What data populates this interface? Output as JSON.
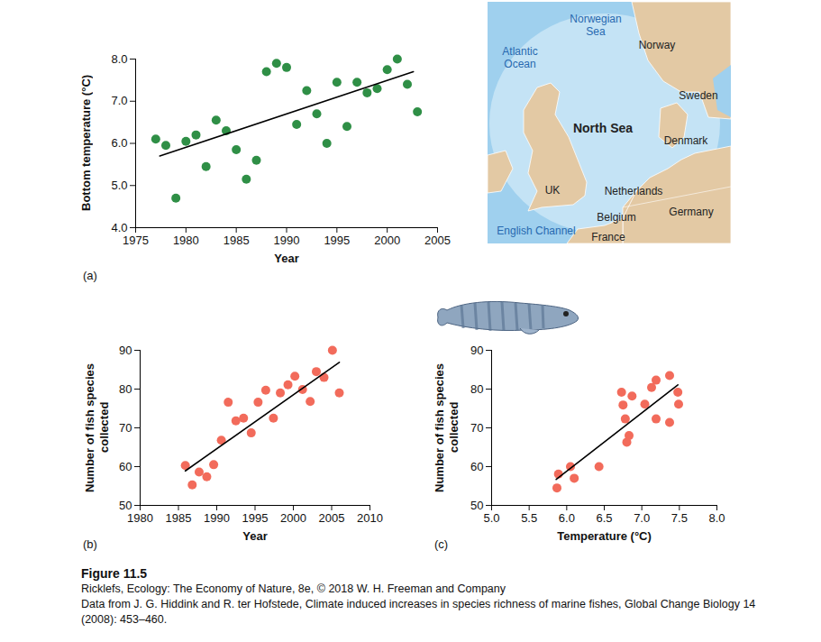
{
  "chart_data": [
    {
      "type": "scatter",
      "annotations": [
        "(a)"
      ],
      "x_label": "Year",
      "y_label": "Bottom temperature (°C)",
      "x": [
        1977,
        1978,
        1979,
        1980,
        1981,
        1982,
        1983,
        1984,
        1985,
        1986,
        1987,
        1988,
        1989,
        1990,
        1991,
        1992,
        1993,
        1994,
        1995,
        1996,
        1997,
        1998,
        1999,
        2000,
        2001,
        2002,
        2003
      ],
      "values": [
        6.1,
        5.95,
        4.7,
        6.05,
        6.2,
        5.45,
        6.55,
        6.3,
        5.85,
        5.15,
        5.6,
        7.7,
        7.9,
        7.8,
        6.45,
        7.25,
        6.7,
        6.0,
        7.45,
        6.4,
        7.45,
        7.2,
        7.3,
        7.75,
        8.0,
        7.4,
        6.75
      ],
      "color": "#2f8f46",
      "marker": "circle",
      "trendline": {
        "x": [
          1977.4,
          2002.6
        ],
        "values": [
          5.7,
          7.7
        ],
        "color": "#000000"
      },
      "xlim": [
        1975,
        2005
      ],
      "xticks": [
        1975,
        1980,
        1985,
        1990,
        1995,
        2000,
        2005
      ],
      "ylim": [
        4,
        8
      ],
      "yticks": [
        {
          "value": 4,
          "label": "4.0"
        },
        {
          "value": 5,
          "label": "5.0"
        },
        {
          "value": 6,
          "label": "6.0"
        },
        {
          "value": 7,
          "label": "7.0"
        },
        {
          "value": 8,
          "label": "8.0"
        }
      ],
      "grid": false
    },
    {
      "type": "scatter",
      "annotations": [
        "(b)"
      ],
      "x_label": "Year",
      "y_label": "Number of fish species collected",
      "x": [
        1985.9,
        1986.8,
        1987.7,
        1988.7,
        1989.6,
        1990.6,
        1991.5,
        1992.5,
        1993.5,
        1994.5,
        1995.4,
        1996.4,
        1997.4,
        1998.3,
        1999.3,
        2000.2,
        2001.2,
        2002.2,
        2003,
        2004,
        2005.1,
        2006
      ],
      "values": [
        60.3,
        55.3,
        58.6,
        57.4,
        60.5,
        66.8,
        76.6,
        71.8,
        72.5,
        68.7,
        76.6,
        79.7,
        72.5,
        79,
        81.1,
        83.3,
        79.9,
        76.8,
        84.5,
        83,
        90,
        79
      ],
      "color": "#f26b5b",
      "marker": "circle",
      "trendline": {
        "x": [
          1985.9,
          2006
        ],
        "values": [
          58.9,
          86.9
        ],
        "color": "#000000"
      },
      "xlim": [
        1980,
        2010
      ],
      "xticks": [
        1980,
        1985,
        1990,
        1995,
        2000,
        2005,
        2010
      ],
      "ylim": [
        50,
        90
      ],
      "yticks": [
        50,
        60,
        70,
        80,
        90
      ],
      "grid": false
    },
    {
      "type": "scatter",
      "annotations": [
        "(c)"
      ],
      "x_label": "Temperature (°C)",
      "y_label": "Number of fish species collected",
      "x": [
        5.87,
        5.89,
        6.05,
        6.1,
        6.43,
        6.73,
        6.75,
        6.78,
        6.8,
        6.83,
        6.87,
        7.04,
        7.13,
        7.19,
        7.19,
        7.37,
        7.37,
        7.48,
        7.49
      ],
      "values": [
        54.5,
        58.1,
        60,
        57,
        60,
        79.2,
        75.9,
        72.3,
        66.3,
        68,
        78.2,
        76.1,
        80.4,
        82.3,
        72.3,
        83.5,
        71.4,
        79.2,
        76.1
      ],
      "color": "#f26b5b",
      "marker": "circle",
      "trendline": {
        "x": [
          5.86,
          7.48
        ],
        "values": [
          56.7,
          81.1
        ],
        "color": "#000000"
      },
      "xlim": [
        5,
        8
      ],
      "xticks": [
        {
          "value": 5,
          "label": "5.0"
        },
        5.5,
        {
          "value": 6,
          "label": "6.0"
        },
        6.5,
        {
          "value": 7,
          "label": "7.0"
        },
        7.5,
        {
          "value": 8,
          "label": "8.0"
        }
      ],
      "ylim": [
        50,
        90
      ],
      "yticks": [
        50,
        60,
        70,
        80,
        90
      ],
      "grid": false
    }
  ],
  "map": {
    "labels": [
      "Norwegian Sea",
      "Norway",
      "Atlantic Ocean",
      "Sweden",
      "North Sea",
      "Denmark",
      "UK",
      "Netherlands",
      "Germany",
      "Belgium",
      "English Channel",
      "France"
    ]
  },
  "figure": {
    "title": "Figure 11.5",
    "caption": [
      "Ricklefs, Ecology: The Economy of Nature, 8e, © 2018 W. H. Freeman and Company",
      "Data from J. G. Hiddink and R. ter Hofstede, Climate induced increases in species richness of marine fishes, Global Change Biology 14 (2008): 453–460."
    ]
  }
}
